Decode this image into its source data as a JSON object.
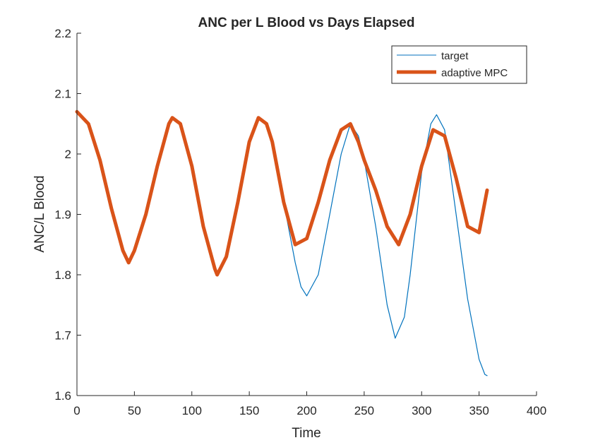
{
  "chart_data": {
    "type": "line",
    "title": "ANC per L Blood vs Days Elapsed",
    "xlabel": "Time",
    "ylabel": "ANC/L Blood",
    "xlim": [
      0,
      400
    ],
    "ylim": [
      1.6,
      2.2
    ],
    "xticks": [
      0,
      50,
      100,
      150,
      200,
      250,
      300,
      350,
      400
    ],
    "yticks": [
      1.6,
      1.7,
      1.8,
      1.9,
      2.0,
      2.1,
      2.2
    ],
    "xtick_labels": [
      "0",
      "50",
      "100",
      "150",
      "200",
      "250",
      "300",
      "350",
      "400"
    ],
    "ytick_labels": [
      "1.6",
      "1.7",
      "1.8",
      "1.9",
      "2",
      "2.1",
      "2.2"
    ],
    "grid": false,
    "legend_position": "top-right",
    "series": [
      {
        "name": "target",
        "color": "#0072BD",
        "x": [
          0,
          10,
          20,
          30,
          40,
          45,
          50,
          60,
          70,
          80,
          83,
          90,
          100,
          110,
          120,
          122,
          130,
          140,
          150,
          158,
          165,
          170,
          180,
          190,
          195,
          200,
          210,
          220,
          230,
          238,
          245,
          250,
          260,
          270,
          277,
          285,
          290,
          300,
          308,
          313,
          320,
          330,
          340,
          350,
          355,
          357
        ],
        "y": [
          2.07,
          2.05,
          1.99,
          1.91,
          1.84,
          1.82,
          1.84,
          1.9,
          1.98,
          2.05,
          2.06,
          2.05,
          1.98,
          1.88,
          1.81,
          1.8,
          1.83,
          1.92,
          2.02,
          2.06,
          2.05,
          2.02,
          1.92,
          1.82,
          1.78,
          1.765,
          1.8,
          1.9,
          2.0,
          2.05,
          2.03,
          1.99,
          1.88,
          1.75,
          1.695,
          1.73,
          1.8,
          1.97,
          2.05,
          2.065,
          2.04,
          1.9,
          1.76,
          1.66,
          1.635,
          1.633
        ]
      },
      {
        "name": "adaptive MPC",
        "color": "#D95319",
        "x": [
          0,
          10,
          20,
          30,
          40,
          45,
          50,
          60,
          70,
          80,
          83,
          90,
          100,
          110,
          120,
          122,
          130,
          140,
          150,
          158,
          165,
          170,
          180,
          190,
          200,
          210,
          220,
          230,
          238,
          245,
          250,
          260,
          270,
          280,
          290,
          300,
          310,
          320,
          330,
          340,
          350,
          357
        ],
        "y": [
          2.07,
          2.05,
          1.99,
          1.91,
          1.84,
          1.82,
          1.84,
          1.9,
          1.98,
          2.05,
          2.06,
          2.05,
          1.98,
          1.88,
          1.81,
          1.8,
          1.83,
          1.92,
          2.02,
          2.06,
          2.05,
          2.02,
          1.92,
          1.85,
          1.86,
          1.92,
          1.99,
          2.04,
          2.05,
          2.02,
          1.99,
          1.94,
          1.88,
          1.85,
          1.9,
          1.98,
          2.04,
          2.03,
          1.96,
          1.88,
          1.87,
          1.94
        ]
      }
    ]
  }
}
